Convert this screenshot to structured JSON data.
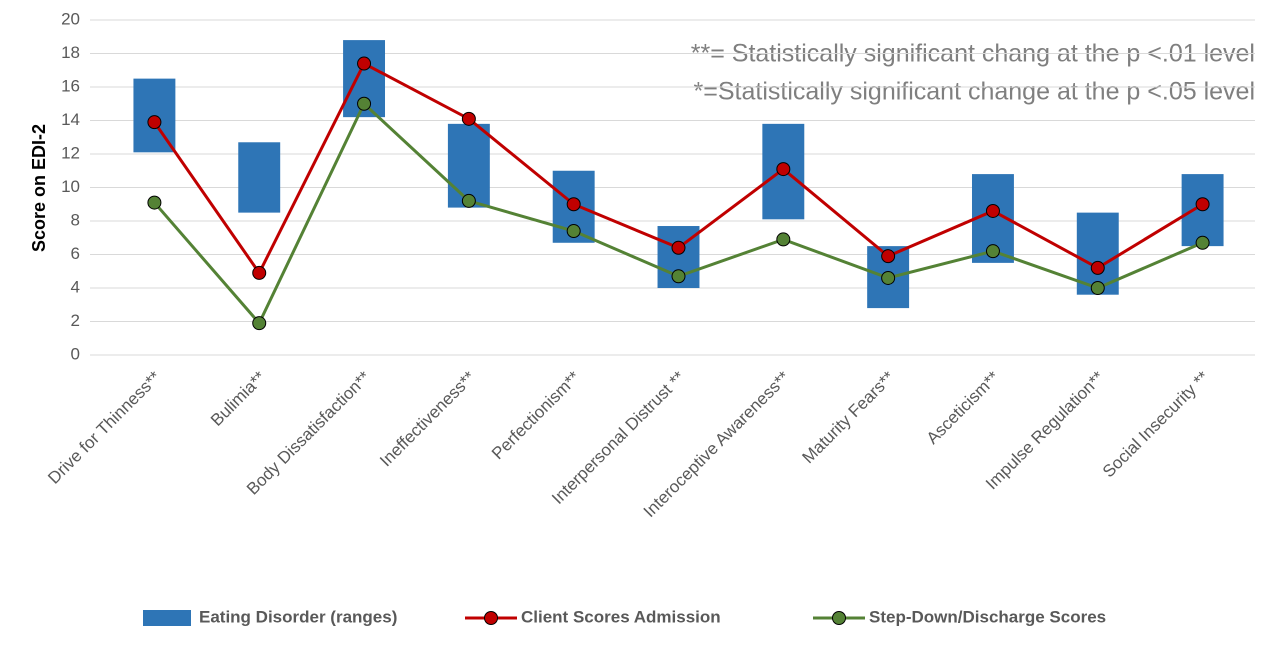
{
  "chart_data": {
    "type": "line",
    "y_label": "Score on EDI-2",
    "annotations": [
      "**= Statistically significant chang at the p <.01 level",
      "*=Statistically significant change at the p <.05 level"
    ],
    "categories": [
      "Drive for Thinness**",
      "Bulimia**",
      "Body Dissatisfaction**",
      "Ineffectiveness**",
      "Perfectionism**",
      "Interpersonal Distrust **",
      "Interoceptive Awareness**",
      "Maturity Fears**",
      "Asceticism**",
      "Impulse Regulation**",
      "Social Insecurity **"
    ],
    "series": [
      {
        "name": "Eating Disorder (ranges)",
        "kind": "range",
        "color": "#2e75b6",
        "low": [
          12.1,
          8.5,
          14.2,
          8.8,
          6.7,
          4.0,
          8.1,
          2.8,
          5.5,
          3.6,
          6.5
        ],
        "high": [
          16.5,
          12.7,
          18.8,
          13.8,
          11.0,
          7.7,
          13.8,
          6.5,
          10.8,
          8.5,
          10.8
        ]
      },
      {
        "name": "Client Scores Admission",
        "kind": "line",
        "color": "#c00000",
        "values": [
          13.9,
          4.9,
          17.4,
          14.1,
          9.0,
          6.4,
          11.1,
          5.9,
          8.6,
          5.2,
          9.0
        ]
      },
      {
        "name": "Step-Down/Discharge Scores",
        "kind": "line",
        "color": "#548235",
        "values": [
          9.1,
          1.9,
          15.0,
          9.2,
          7.4,
          4.7,
          6.9,
          4.6,
          6.2,
          4.0,
          6.7
        ]
      }
    ],
    "ylim": [
      0,
      20
    ],
    "yticks": [
      0,
      2,
      4,
      6,
      8,
      10,
      12,
      14,
      16,
      18,
      20
    ],
    "grid": true
  }
}
